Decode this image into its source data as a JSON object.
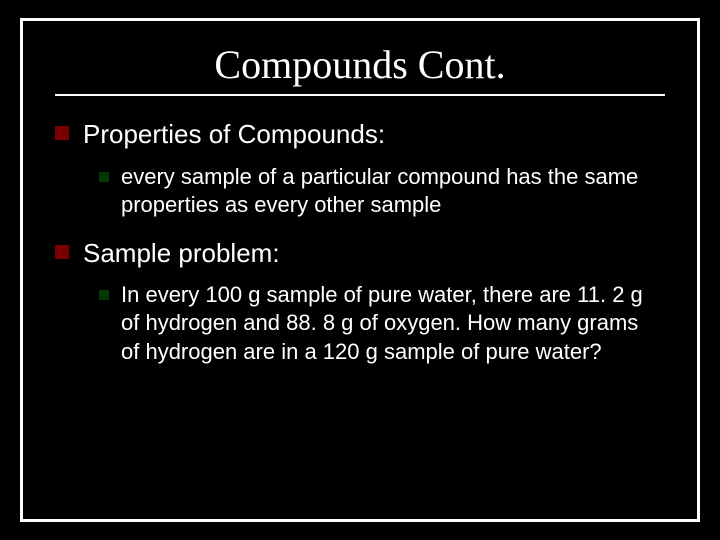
{
  "colors": {
    "background": "#000000",
    "border": "#ffffff",
    "text": "#ffffff",
    "bullet_lvl1": "#7a0000",
    "bullet_lvl2": "#003a00"
  },
  "typography": {
    "title_font": "Times New Roman",
    "body_font": "Arial",
    "title_size_pt": 40,
    "lvl1_size_pt": 26,
    "lvl2_size_pt": 22
  },
  "slide": {
    "title": "Compounds Cont.",
    "items": [
      {
        "text": "Properties of Compounds:",
        "sub": [
          {
            "text": " every sample of a particular compound has the same properties as every other sample"
          }
        ]
      },
      {
        "text": "Sample problem:",
        "sub": [
          {
            "text": "In every 100 g sample of pure water, there are 11. 2 g of hydrogen and 88. 8 g of oxygen.  How many grams of hydrogen are in a 120 g sample of pure water?"
          }
        ]
      }
    ]
  }
}
